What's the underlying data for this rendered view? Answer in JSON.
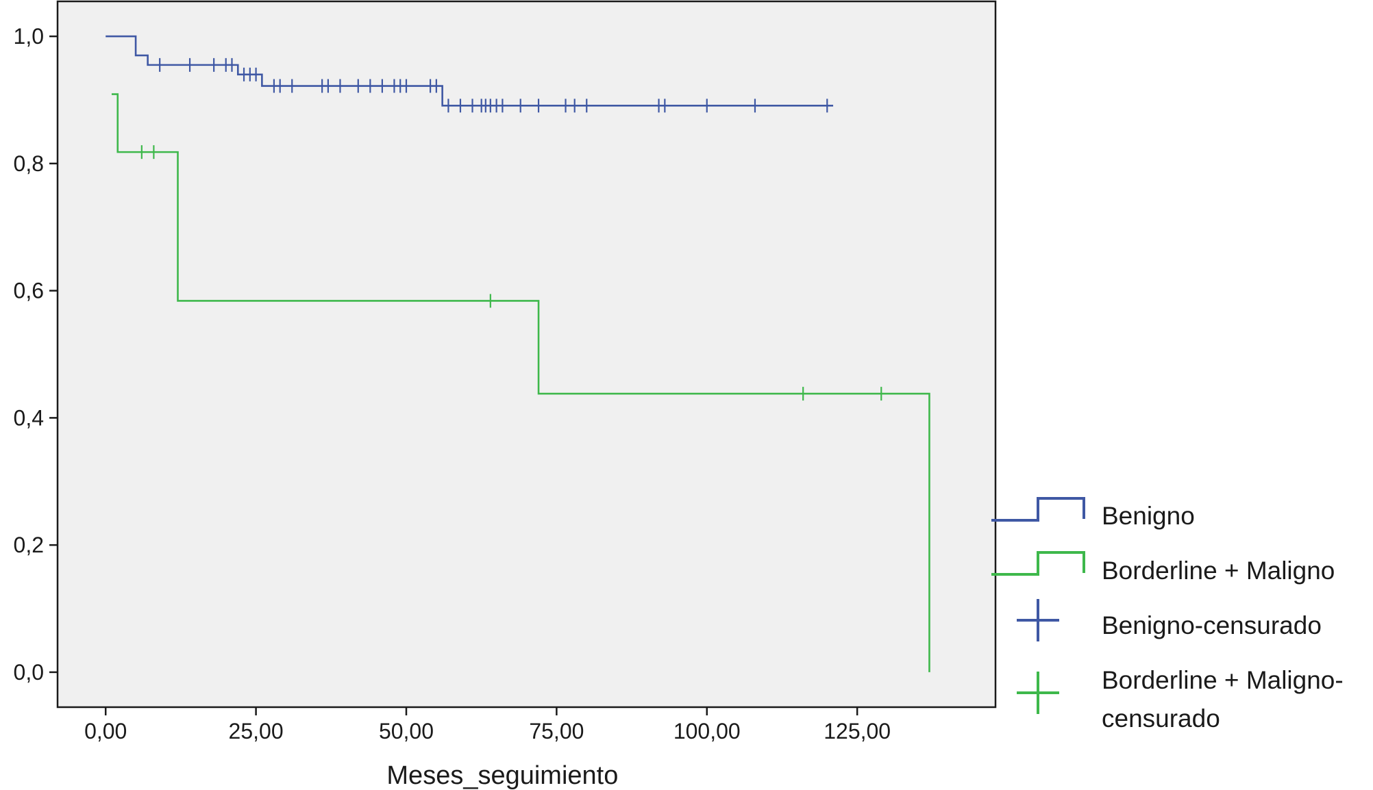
{
  "chart_data": {
    "type": "line",
    "subtype": "kaplan-meier-step",
    "title": "",
    "xlabel": "Meses_seguimiento",
    "ylabel": "",
    "xlim": [
      -8,
      148
    ],
    "ylim": [
      -0.055,
      1.055
    ],
    "xticks": [
      0,
      25,
      50,
      75,
      100,
      125
    ],
    "xtick_labels": [
      "0,00",
      "25,00",
      "50,00",
      "75,00",
      "100,00",
      "125,00"
    ],
    "yticks": [
      0.0,
      0.2,
      0.4,
      0.6,
      0.8,
      1.0
    ],
    "ytick_labels": [
      "0,0",
      "0,2",
      "0,4",
      "0,6",
      "0,8",
      "1,0"
    ],
    "grid": false,
    "plot_background": "#f0f0f0",
    "legend_position": "right",
    "series": [
      {
        "name": "Benigno",
        "color": "#3f58a4",
        "steps": [
          [
            0,
            1.0
          ],
          [
            5,
            0.97
          ],
          [
            7,
            0.955
          ],
          [
            22,
            0.94
          ],
          [
            26,
            0.922
          ],
          [
            56,
            0.891
          ],
          [
            121,
            0.891
          ]
        ],
        "censored": [
          9,
          14,
          18,
          20,
          21,
          23,
          24,
          25,
          28,
          29,
          31,
          36,
          37,
          39,
          42,
          44,
          46,
          48,
          49,
          50,
          54,
          55,
          57,
          59,
          61,
          62.5,
          63.2,
          64,
          65,
          66,
          69,
          72,
          76.5,
          78,
          80,
          92,
          93,
          100,
          108,
          120
        ]
      },
      {
        "name": "Borderline + Maligno",
        "color": "#3eb84b",
        "steps": [
          [
            1,
            0.909
          ],
          [
            2,
            0.818
          ],
          [
            12,
            0.584
          ],
          [
            72,
            0.438
          ],
          [
            137,
            0.0
          ]
        ],
        "censored": [
          6,
          8,
          64,
          116,
          129
        ]
      }
    ],
    "legend": [
      {
        "label": "Benigno",
        "kind": "step",
        "color": "#3f58a4"
      },
      {
        "label": "Borderline + Maligno",
        "kind": "step",
        "color": "#3eb84b"
      },
      {
        "label": "Benigno-censurado",
        "kind": "censor",
        "color": "#3f58a4"
      },
      {
        "label_lines": [
          "Borderline + Maligno-",
          "censurado"
        ],
        "kind": "censor",
        "color": "#3eb84b"
      }
    ]
  }
}
